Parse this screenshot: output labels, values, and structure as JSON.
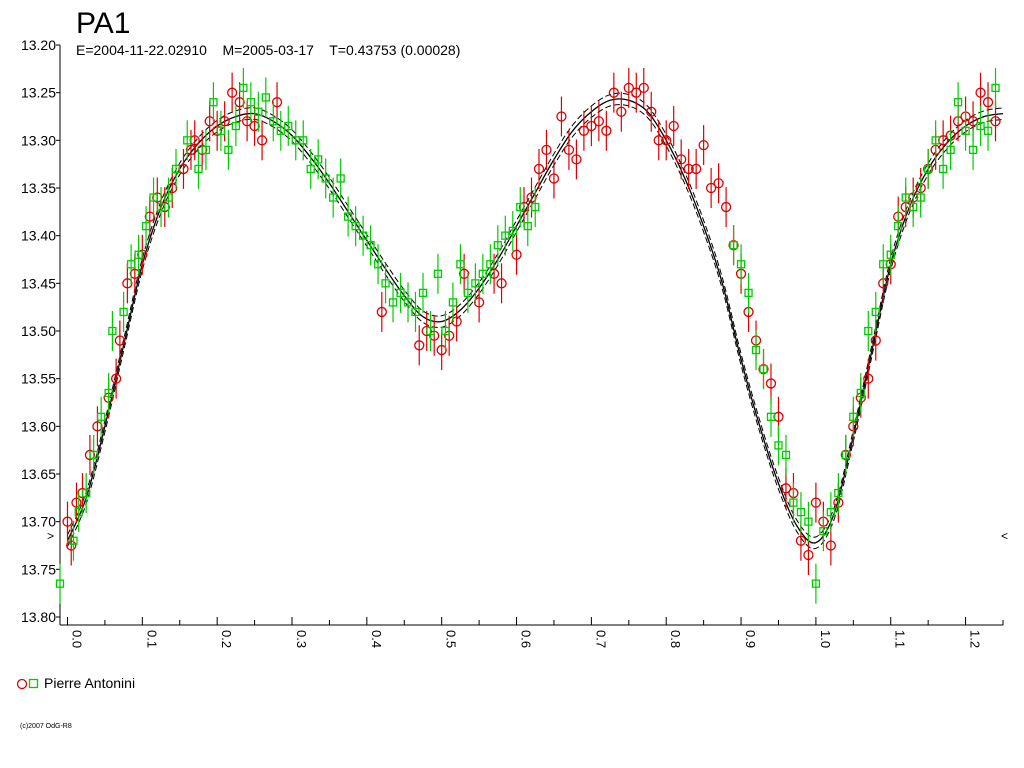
{
  "chart_data": {
    "type": "scatter",
    "title": "PA1",
    "subtitle": "E=2004-11-22.02910    M=2005-03-17    T=0.43753 (0.00028)",
    "xlabel": "",
    "ylabel": "",
    "xlim": [
      -0.01,
      1.25
    ],
    "ylim": [
      13.2,
      13.8
    ],
    "y_inverted": true,
    "x_ticks": [
      "0.0",
      "0.1",
      "0.2",
      "0.3",
      "0.4",
      "0.5",
      "0.6",
      "0.7",
      "0.8",
      "0.9",
      "1.0",
      "1.1",
      "1.2"
    ],
    "y_ticks": [
      "13.20",
      "13.25",
      "13.30",
      "13.35",
      "13.40",
      "13.45",
      "13.50",
      "13.55",
      "13.60",
      "13.65",
      "13.70",
      "13.75",
      "13.80"
    ],
    "grid": false,
    "legend_position": "bottom-left",
    "series": [
      {
        "name": "Pierre Antonini",
        "marker": "circle",
        "color": "#dd0000",
        "x": [
          0.0,
          0.005,
          0.012,
          0.02,
          0.03,
          0.04,
          0.055,
          0.065,
          0.07,
          0.08,
          0.09,
          0.1,
          0.11,
          0.12,
          0.13,
          0.14,
          0.155,
          0.165,
          0.17,
          0.18,
          0.19,
          0.2,
          0.21,
          0.22,
          0.23,
          0.24,
          0.25,
          0.26,
          0.28,
          0.42,
          0.47,
          0.48,
          0.49,
          0.5,
          0.51,
          0.52,
          0.53,
          0.55,
          0.57,
          0.58,
          0.6,
          0.61,
          0.62,
          0.63,
          0.64,
          0.65,
          0.66,
          0.67,
          0.68,
          0.69,
          0.7,
          0.71,
          0.72,
          0.73,
          0.74,
          0.75,
          0.76,
          0.77,
          0.78,
          0.79,
          0.8,
          0.81,
          0.82,
          0.83,
          0.84,
          0.85,
          0.86,
          0.87,
          0.88,
          0.89,
          0.9,
          0.91,
          0.92,
          0.93,
          0.94,
          0.95,
          0.96,
          0.97,
          0.98,
          0.99,
          1.0,
          1.01,
          1.02,
          1.03,
          1.04,
          1.05,
          1.06,
          1.07,
          1.08,
          1.09,
          1.1,
          1.11,
          1.12,
          1.13,
          1.14,
          1.15,
          1.16,
          1.17,
          1.18,
          1.19,
          1.2,
          1.21,
          1.22,
          1.23,
          1.24
        ],
        "y": [
          13.7,
          13.725,
          13.68,
          13.67,
          13.63,
          13.6,
          13.57,
          13.55,
          13.51,
          13.45,
          13.44,
          13.42,
          13.38,
          13.36,
          13.37,
          13.35,
          13.33,
          13.31,
          13.3,
          13.31,
          13.28,
          13.29,
          13.28,
          13.25,
          13.26,
          13.28,
          13.285,
          13.3,
          13.26,
          13.48,
          13.515,
          13.5,
          13.505,
          13.52,
          13.505,
          13.49,
          13.44,
          13.47,
          13.44,
          13.45,
          13.42,
          13.37,
          13.36,
          13.33,
          13.31,
          13.34,
          13.275,
          13.31,
          13.32,
          13.29,
          13.285,
          13.28,
          13.29,
          13.25,
          13.27,
          13.245,
          13.25,
          13.245,
          13.27,
          13.3,
          13.3,
          13.285,
          13.32,
          13.33,
          13.33,
          13.305,
          13.35,
          13.345,
          13.37,
          13.41,
          13.44,
          13.48,
          13.51,
          13.54,
          13.555,
          13.59,
          13.665,
          13.67,
          13.72,
          13.735,
          13.68,
          13.7,
          13.725,
          13.68,
          13.63,
          13.6,
          13.57,
          13.55,
          13.51,
          13.45,
          13.43,
          13.38,
          13.37,
          13.36,
          13.35,
          13.33,
          13.31,
          13.3,
          13.295,
          13.28,
          13.275,
          13.28,
          13.25,
          13.26,
          13.28
        ]
      },
      {
        "name": "Pierre Antonini",
        "marker": "square",
        "color": "#00cc00",
        "x": [
          -0.01,
          0.008,
          0.015,
          0.025,
          0.035,
          0.045,
          0.055,
          0.06,
          0.075,
          0.085,
          0.095,
          0.105,
          0.115,
          0.125,
          0.135,
          0.145,
          0.16,
          0.175,
          0.185,
          0.195,
          0.205,
          0.215,
          0.225,
          0.235,
          0.245,
          0.255,
          0.265,
          0.275,
          0.285,
          0.295,
          0.305,
          0.315,
          0.325,
          0.335,
          0.345,
          0.355,
          0.365,
          0.375,
          0.385,
          0.395,
          0.405,
          0.415,
          0.425,
          0.435,
          0.445,
          0.455,
          0.465,
          0.475,
          0.485,
          0.495,
          0.505,
          0.515,
          0.525,
          0.535,
          0.545,
          0.555,
          0.565,
          0.575,
          0.585,
          0.595,
          0.605,
          0.615,
          0.625,
          0.89,
          0.9,
          0.91,
          0.92,
          0.93,
          0.94,
          0.95,
          0.96,
          0.97,
          0.98,
          0.99,
          1.0,
          1.01,
          1.02,
          1.03,
          1.04,
          1.05,
          1.06,
          1.07,
          1.08,
          1.09,
          1.1,
          1.11,
          1.12,
          1.13,
          1.14,
          1.15,
          1.16,
          1.17,
          1.18,
          1.19,
          1.2,
          1.21,
          1.22,
          1.23,
          1.24
        ],
        "y": [
          13.765,
          13.72,
          13.69,
          13.67,
          13.63,
          13.59,
          13.565,
          13.5,
          13.48,
          13.43,
          13.42,
          13.39,
          13.36,
          13.37,
          13.36,
          13.33,
          13.3,
          13.33,
          13.31,
          13.26,
          13.29,
          13.31,
          13.285,
          13.245,
          13.26,
          13.27,
          13.255,
          13.28,
          13.29,
          13.285,
          13.3,
          13.3,
          13.33,
          13.32,
          13.34,
          13.36,
          13.34,
          13.38,
          13.39,
          13.4,
          13.41,
          13.43,
          13.45,
          13.47,
          13.46,
          13.47,
          13.48,
          13.46,
          13.5,
          13.44,
          13.5,
          13.47,
          13.43,
          13.46,
          13.45,
          13.44,
          13.43,
          13.41,
          13.4,
          13.395,
          13.37,
          13.39,
          13.37,
          13.41,
          13.43,
          13.46,
          13.52,
          13.54,
          13.59,
          13.62,
          13.63,
          13.68,
          13.69,
          13.7,
          13.765,
          13.71,
          13.69,
          13.67,
          13.63,
          13.59,
          13.565,
          13.5,
          13.48,
          13.43,
          13.42,
          13.39,
          13.36,
          13.37,
          13.36,
          13.33,
          13.3,
          13.33,
          13.31,
          13.26,
          13.29,
          13.31,
          13.285,
          13.29,
          13.245
        ]
      }
    ],
    "fit_curve": {
      "style": "solid line with dashed upper and lower envelopes",
      "color": "#000000",
      "x": [
        0.0,
        0.025,
        0.05,
        0.075,
        0.1,
        0.125,
        0.15,
        0.175,
        0.2,
        0.225,
        0.25,
        0.275,
        0.3,
        0.325,
        0.35,
        0.375,
        0.4,
        0.425,
        0.45,
        0.475,
        0.5,
        0.525,
        0.55,
        0.575,
        0.6,
        0.625,
        0.65,
        0.675,
        0.7,
        0.725,
        0.75,
        0.775,
        0.8,
        0.825,
        0.85,
        0.875,
        0.9,
        0.925,
        0.95,
        0.975,
        1.0,
        1.025,
        1.05,
        1.075,
        1.1,
        1.125,
        1.15,
        1.175,
        1.2,
        1.225,
        1.25
      ],
      "y": [
        13.72,
        13.675,
        13.6,
        13.515,
        13.43,
        13.37,
        13.33,
        13.303,
        13.285,
        13.275,
        13.272,
        13.28,
        13.295,
        13.318,
        13.345,
        13.375,
        13.405,
        13.435,
        13.463,
        13.485,
        13.49,
        13.478,
        13.455,
        13.425,
        13.39,
        13.355,
        13.32,
        13.29,
        13.27,
        13.258,
        13.258,
        13.27,
        13.3,
        13.34,
        13.39,
        13.45,
        13.53,
        13.6,
        13.66,
        13.705,
        13.722,
        13.69,
        13.61,
        13.52,
        13.43,
        13.37,
        13.33,
        13.303,
        13.285,
        13.275,
        13.272
      ],
      "band": 0.006
    },
    "ticks_right": [
      "<"
    ],
    "ticks_left": [
      ">"
    ]
  },
  "legend": {
    "label": "Pierre Antonini"
  },
  "footer": {
    "copyright": "(c)2007 OdG-R8"
  }
}
